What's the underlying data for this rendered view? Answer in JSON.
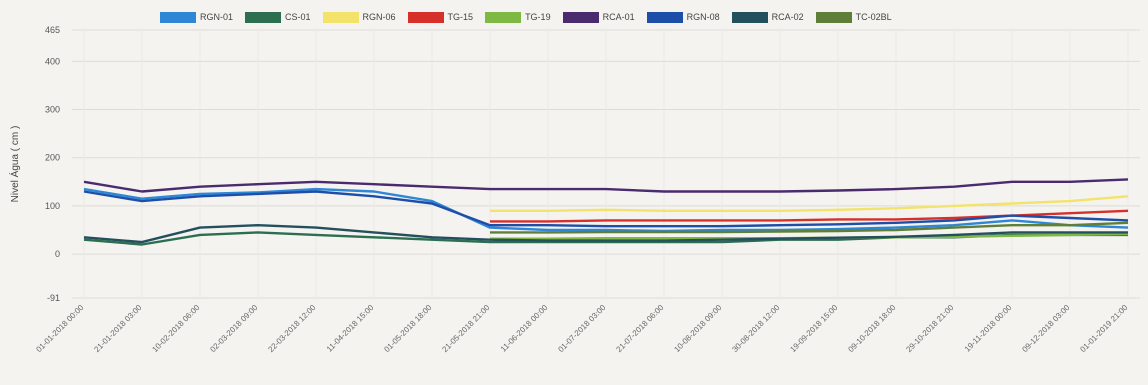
{
  "background_lines": [],
  "chart_data": {
    "type": "line",
    "title": "",
    "xlabel": "",
    "ylabel": "Nivel Água ( cm )",
    "ylim": [
      -91,
      465
    ],
    "yticks": [
      465,
      400,
      300,
      200,
      100,
      0,
      -91
    ],
    "legend_position": "top",
    "grid": true,
    "xticks": [
      "01-01-2018 00:00",
      "21-01-2018 03:00",
      "10-02-2018 06:00",
      "02-03-2018 09:00",
      "22-03-2018 12:00",
      "11-04-2018 15:00",
      "01-05-2018 18:00",
      "21-05-2018 21:00",
      "11-06-2018 00:00",
      "01-07-2018 03:00",
      "21-07-2018 06:00",
      "10-08-2018 09:00",
      "30-08-2018 12:00",
      "19-09-2018 15:00",
      "09-10-2018 18:00",
      "29-10-2018 21:00",
      "19-11-2018 00:00",
      "09-12-2018 03:00",
      "01-01-2019 21:00"
    ],
    "series": [
      {
        "name": "RGN-01",
        "color": "#2e86d6",
        "start": 0,
        "points": [
          [
            0,
            135
          ],
          [
            1,
            115
          ],
          [
            2,
            125
          ],
          [
            3,
            128
          ],
          [
            4,
            135
          ],
          [
            5,
            130
          ],
          [
            6,
            110
          ],
          [
            7,
            55
          ],
          [
            8,
            50
          ],
          [
            9,
            50
          ],
          [
            10,
            48
          ],
          [
            11,
            50
          ],
          [
            12,
            50
          ],
          [
            13,
            52
          ],
          [
            14,
            55
          ],
          [
            15,
            60
          ],
          [
            16,
            70
          ],
          [
            17,
            60
          ],
          [
            18,
            55
          ]
        ]
      },
      {
        "name": "CS-01",
        "color": "#2c6e4f",
        "start": 0,
        "points": [
          [
            0,
            30
          ],
          [
            1,
            20
          ],
          [
            2,
            40
          ],
          [
            3,
            45
          ],
          [
            4,
            40
          ],
          [
            5,
            35
          ],
          [
            6,
            30
          ],
          [
            7,
            25
          ],
          [
            8,
            25
          ],
          [
            9,
            25
          ],
          [
            10,
            25
          ],
          [
            11,
            25
          ],
          [
            12,
            30
          ],
          [
            13,
            30
          ],
          [
            14,
            35
          ],
          [
            15,
            35
          ],
          [
            16,
            40
          ],
          [
            17,
            40
          ],
          [
            18,
            40
          ]
        ]
      },
      {
        "name": "RGN-06",
        "color": "#f3e36a",
        "start": 7,
        "points": [
          [
            7,
            90
          ],
          [
            8,
            90
          ],
          [
            9,
            92
          ],
          [
            10,
            90
          ],
          [
            11,
            90
          ],
          [
            12,
            90
          ],
          [
            13,
            92
          ],
          [
            14,
            95
          ],
          [
            15,
            100
          ],
          [
            16,
            105
          ],
          [
            17,
            110
          ],
          [
            18,
            120
          ]
        ]
      },
      {
        "name": "TG-15",
        "color": "#d6302a",
        "start": 7,
        "points": [
          [
            7,
            68
          ],
          [
            8,
            68
          ],
          [
            9,
            70
          ],
          [
            10,
            70
          ],
          [
            11,
            70
          ],
          [
            12,
            70
          ],
          [
            13,
            72
          ],
          [
            14,
            72
          ],
          [
            15,
            75
          ],
          [
            16,
            80
          ],
          [
            17,
            85
          ],
          [
            18,
            90
          ]
        ]
      },
      {
        "name": "TG-19",
        "color": "#7fb843",
        "start": 7,
        "points": [
          [
            7,
            32
          ],
          [
            8,
            32
          ],
          [
            9,
            33
          ],
          [
            10,
            33
          ],
          [
            11,
            33
          ],
          [
            12,
            33
          ],
          [
            13,
            34
          ],
          [
            14,
            35
          ],
          [
            15,
            36
          ],
          [
            16,
            38
          ],
          [
            17,
            40
          ],
          [
            18,
            42
          ]
        ]
      },
      {
        "name": "RCA-01",
        "color": "#4a2b6e",
        "start": 0,
        "points": [
          [
            0,
            150
          ],
          [
            1,
            130
          ],
          [
            2,
            140
          ],
          [
            3,
            145
          ],
          [
            4,
            150
          ],
          [
            5,
            145
          ],
          [
            6,
            140
          ],
          [
            7,
            135
          ],
          [
            8,
            135
          ],
          [
            9,
            135
          ],
          [
            10,
            130
          ],
          [
            11,
            130
          ],
          [
            12,
            130
          ],
          [
            13,
            132
          ],
          [
            14,
            135
          ],
          [
            15,
            140
          ],
          [
            16,
            150
          ],
          [
            17,
            150
          ],
          [
            18,
            155
          ]
        ]
      },
      {
        "name": "RGN-08",
        "color": "#1e4fa8",
        "start": 0,
        "points": [
          [
            0,
            130
          ],
          [
            1,
            110
          ],
          [
            2,
            120
          ],
          [
            3,
            125
          ],
          [
            4,
            130
          ],
          [
            5,
            120
          ],
          [
            6,
            105
          ],
          [
            7,
            60
          ],
          [
            8,
            60
          ],
          [
            9,
            58
          ],
          [
            10,
            58
          ],
          [
            11,
            58
          ],
          [
            12,
            60
          ],
          [
            13,
            62
          ],
          [
            14,
            65
          ],
          [
            15,
            70
          ],
          [
            16,
            80
          ],
          [
            17,
            75
          ],
          [
            18,
            70
          ]
        ]
      },
      {
        "name": "RCA-02",
        "color": "#24505e",
        "start": 0,
        "points": [
          [
            0,
            35
          ],
          [
            1,
            25
          ],
          [
            2,
            55
          ],
          [
            3,
            60
          ],
          [
            4,
            55
          ],
          [
            5,
            45
          ],
          [
            6,
            35
          ],
          [
            7,
            30
          ],
          [
            8,
            28
          ],
          [
            9,
            28
          ],
          [
            10,
            28
          ],
          [
            11,
            30
          ],
          [
            12,
            32
          ],
          [
            13,
            34
          ],
          [
            14,
            36
          ],
          [
            15,
            40
          ],
          [
            16,
            45
          ],
          [
            17,
            45
          ],
          [
            18,
            45
          ]
        ]
      },
      {
        "name": "TC-02BL",
        "color": "#5f7f38",
        "start": 7,
        "points": [
          [
            7,
            45
          ],
          [
            8,
            45
          ],
          [
            9,
            46
          ],
          [
            10,
            46
          ],
          [
            11,
            46
          ],
          [
            12,
            47
          ],
          [
            13,
            48
          ],
          [
            14,
            50
          ],
          [
            15,
            55
          ],
          [
            16,
            60
          ],
          [
            17,
            60
          ],
          [
            18,
            65
          ]
        ]
      }
    ]
  }
}
